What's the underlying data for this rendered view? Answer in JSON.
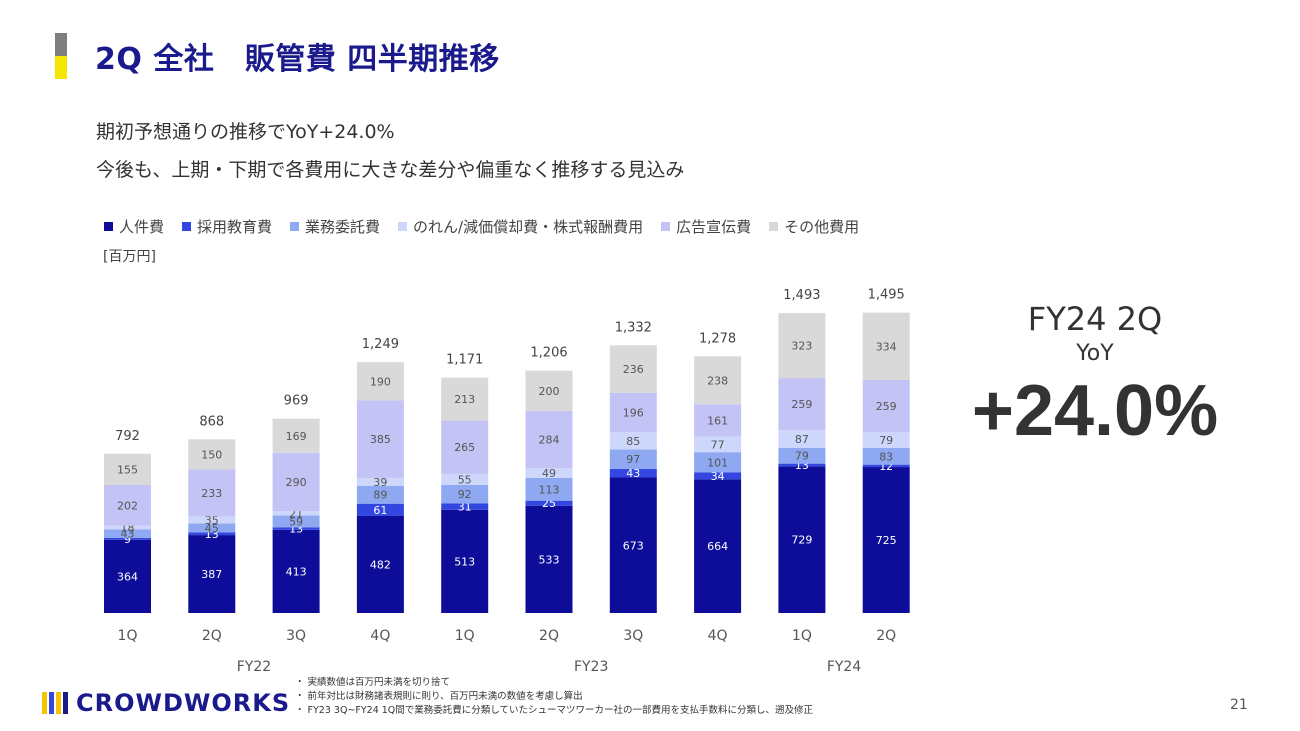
{
  "title": "2Q 全社　販管費 四半期推移",
  "subtitle_lines": [
    "期初予想通りの推移でYoY+24.0%",
    "今後も、上期・下期で各費用に大きな差分や偏重なく推移する見込み"
  ],
  "unit_label": "[百万円]",
  "kpi": {
    "period": "FY24 2Q",
    "label": "YoY",
    "value": "+24.0%"
  },
  "notes": [
    "実績数値は百万円未満を切り捨て",
    "前年対比は財務諸表規則に則り、百万円未満の数値を考慮し算出",
    "FY23 3Q~FY24 1Q間で業務委託費に分類していたシューマツワーカー社の一部費用を支払手数料に分類し、遡及修正"
  ],
  "logo_text": "CROWDWORKS",
  "page_number": "21",
  "colors": {
    "title": "#1a1a8c",
    "accent_gray": "#7f7f7f",
    "accent_yellow": "#f5e600"
  },
  "chart_data": {
    "type": "bar",
    "stacked": true,
    "categories": [
      "1Q",
      "2Q",
      "3Q",
      "4Q",
      "1Q",
      "2Q",
      "3Q",
      "4Q",
      "1Q",
      "2Q"
    ],
    "groups": [
      {
        "label": "FY22",
        "from": 0,
        "to": 3
      },
      {
        "label": "FY23",
        "from": 4,
        "to": 7
      },
      {
        "label": "FY24",
        "from": 8,
        "to": 9
      }
    ],
    "series": [
      {
        "name": "人件費",
        "color": "#0d0d99",
        "values": [
          364,
          387,
          413,
          482,
          513,
          533,
          673,
          664,
          729,
          725
        ]
      },
      {
        "name": "採用教育費",
        "color": "#3347e0",
        "values": [
          9,
          13,
          13,
          61,
          31,
          25,
          43,
          34,
          13,
          12
        ]
      },
      {
        "name": "業務委託費",
        "color": "#8fa8f2",
        "values": [
          43,
          45,
          59,
          89,
          92,
          113,
          97,
          101,
          79,
          83
        ]
      },
      {
        "name": "のれん/減価償却費・株式報酬費用",
        "color": "#cdd6fb",
        "values": [
          18,
          35,
          21,
          39,
          55,
          49,
          85,
          77,
          87,
          79
        ]
      },
      {
        "name": "広告宣伝費",
        "color": "#c4c3f5",
        "values": [
          202,
          233,
          290,
          385,
          265,
          284,
          196,
          161,
          259,
          259
        ]
      },
      {
        "name": "その他費用",
        "color": "#d9d9d9",
        "values": [
          155,
          150,
          169,
          190,
          213,
          200,
          236,
          238,
          323,
          334
        ]
      }
    ],
    "totals": [
      792,
      868,
      969,
      1249,
      1171,
      1206,
      1332,
      1278,
      1493,
      1495
    ],
    "ylim": [
      0,
      1600
    ],
    "grid": false,
    "legend_position": "top-left"
  }
}
